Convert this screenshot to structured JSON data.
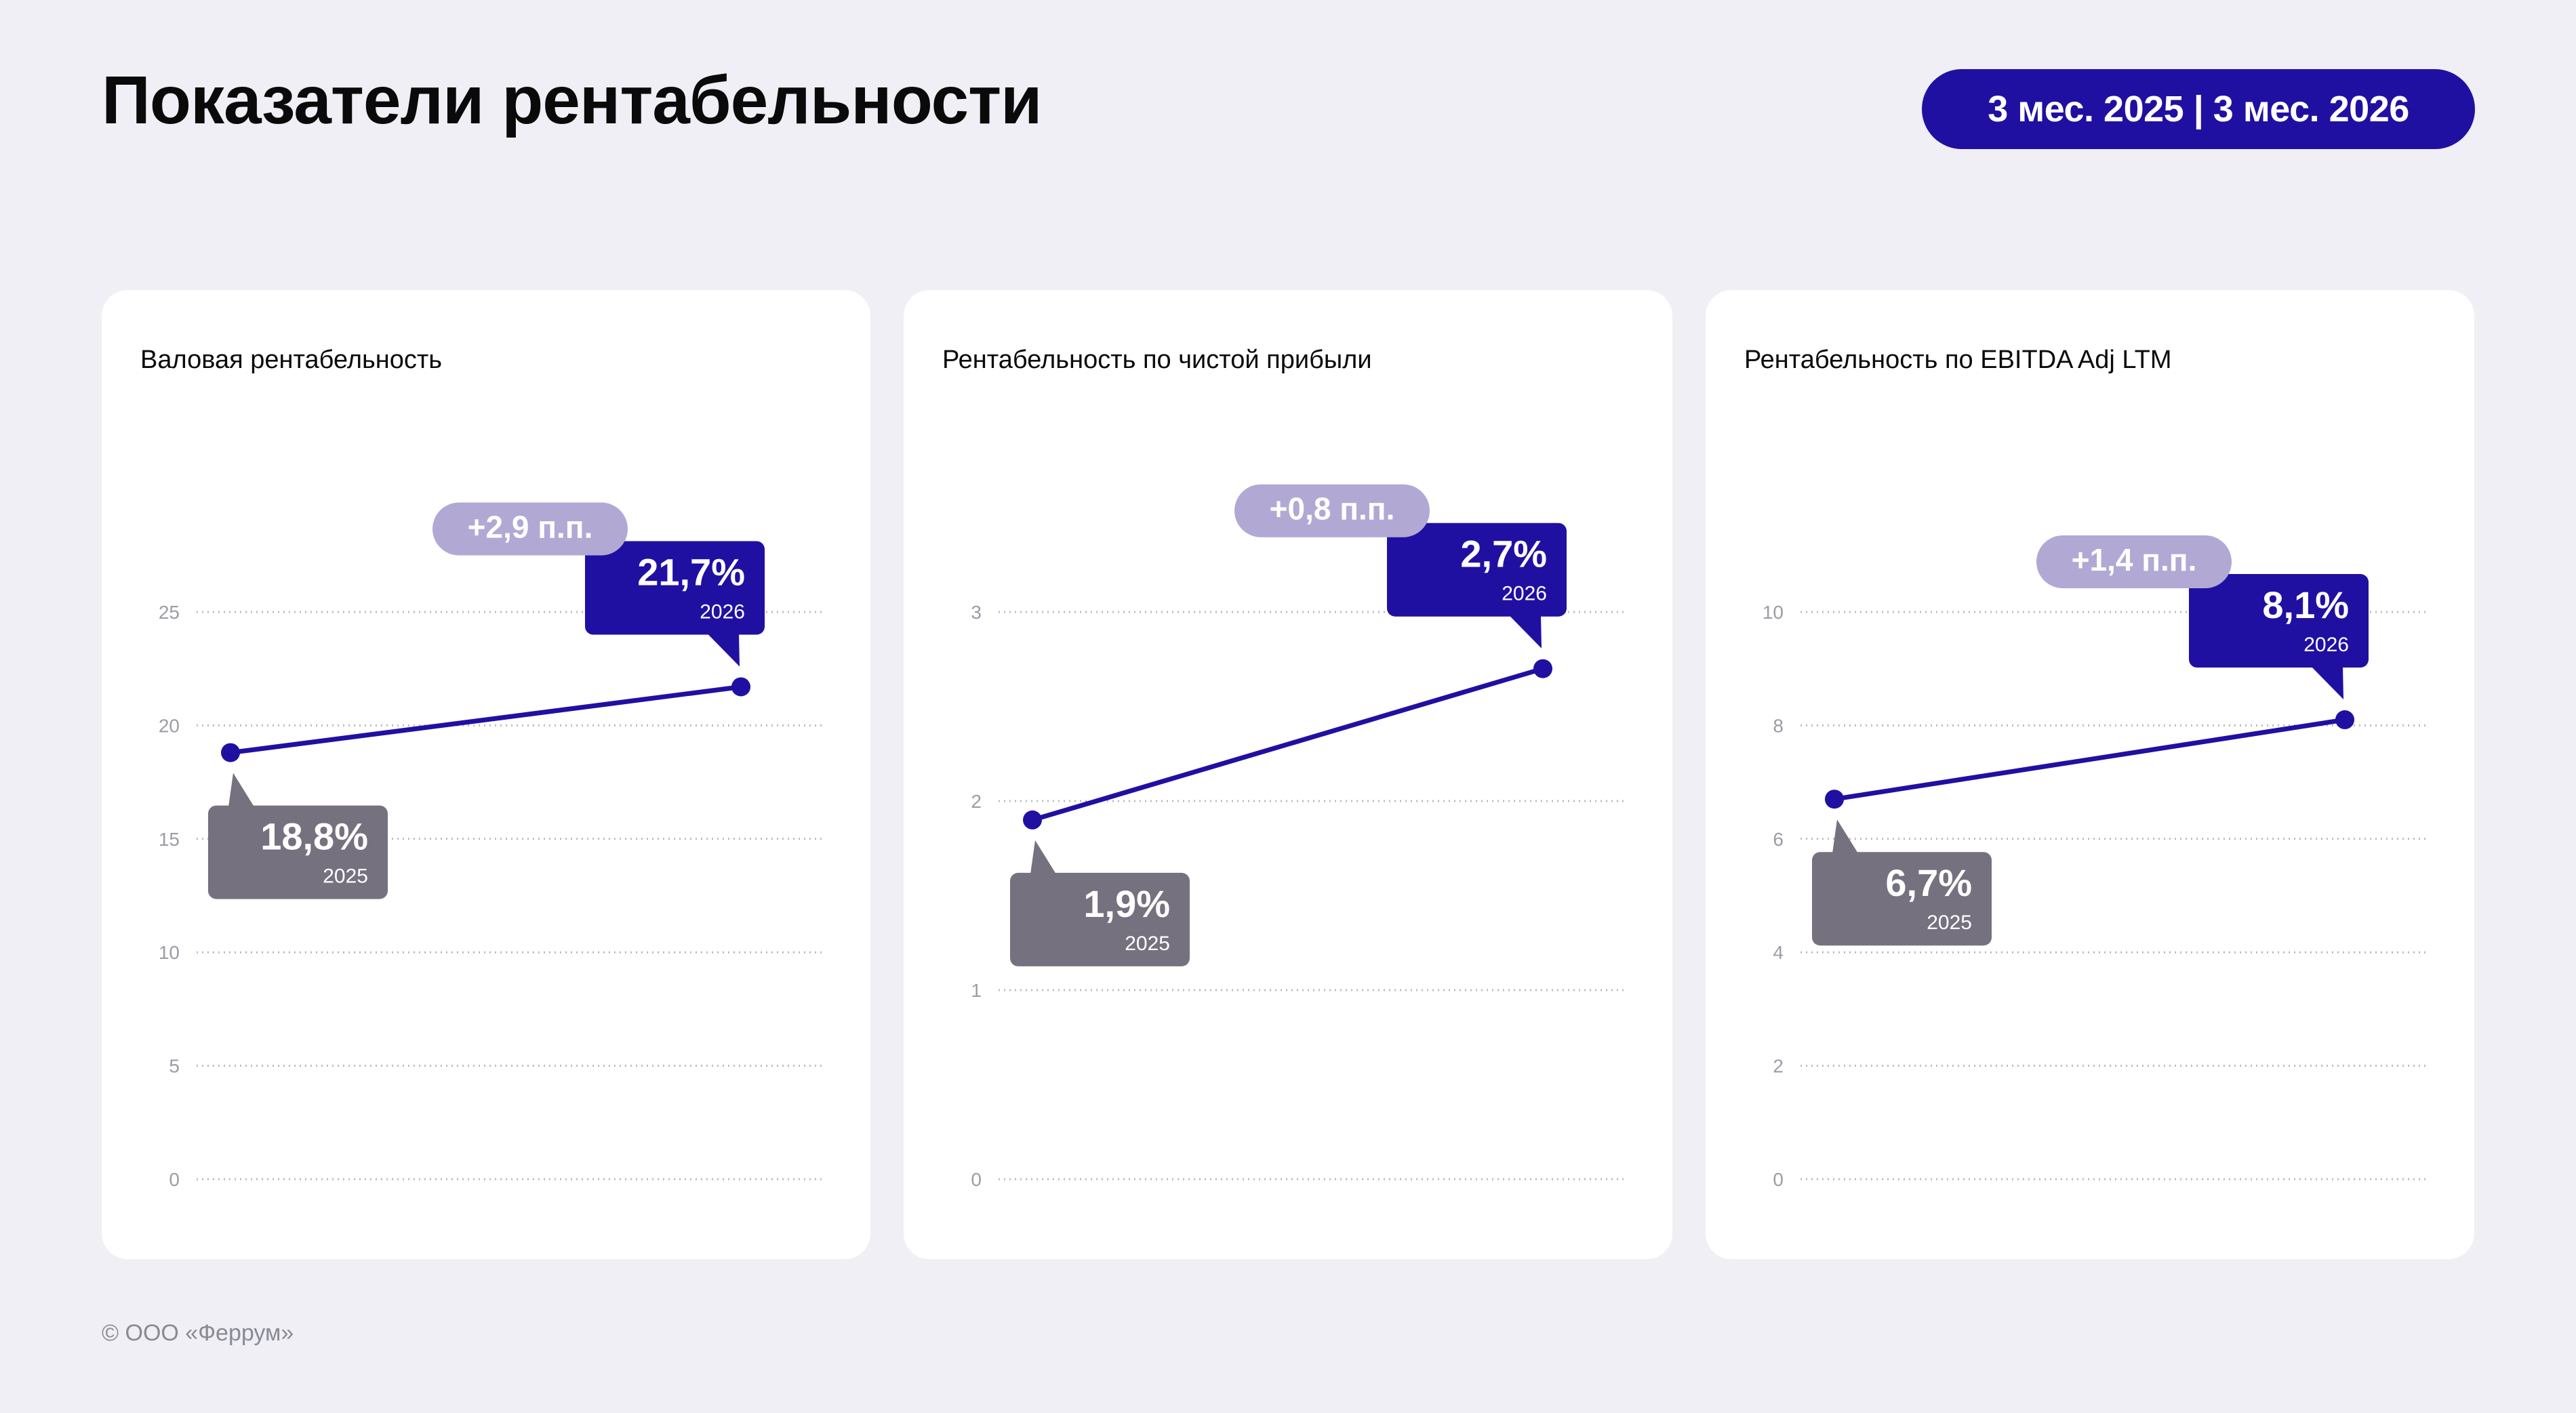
{
  "header": {
    "title": "Показатели рентабельности",
    "period": "3 мес. 2025 | 3 мес. 2026"
  },
  "colors": {
    "accent": "#2010a2",
    "badge_2025": "#76717f",
    "delta_badge": "#b1a9d4",
    "background": "#efeff5",
    "card": "#ffffff"
  },
  "chart_data": [
    {
      "type": "line",
      "title": "Валовая рентабельность",
      "x": [
        "2025",
        "2026"
      ],
      "values": [
        18.8,
        21.7
      ],
      "value_labels": [
        "18,8%",
        "21,7%"
      ],
      "delta_label": "+2,9 п.п.",
      "yticks": [
        0,
        5,
        10,
        15,
        20,
        25
      ],
      "ylim": [
        0,
        25
      ],
      "grid": true
    },
    {
      "type": "line",
      "title": "Рентабельность по чистой прибыли",
      "x": [
        "2025",
        "2026"
      ],
      "values": [
        1.9,
        2.7
      ],
      "value_labels": [
        "1,9%",
        "2,7%"
      ],
      "delta_label": "+0,8 п.п.",
      "yticks": [
        0,
        1,
        2,
        3
      ],
      "ylim": [
        0,
        3
      ],
      "grid": true
    },
    {
      "type": "line",
      "title": "Рентабельность по EBITDA Adj LTM",
      "x": [
        "2025",
        "2026"
      ],
      "values": [
        6.7,
        8.1
      ],
      "value_labels": [
        "6,7%",
        "8,1%"
      ],
      "delta_label": "+1,4 п.п.",
      "yticks": [
        0,
        2,
        4,
        6,
        8,
        10
      ],
      "ylim": [
        0,
        10
      ],
      "grid": true
    }
  ],
  "footer": {
    "copyright": "© ООО «Феррум»"
  }
}
